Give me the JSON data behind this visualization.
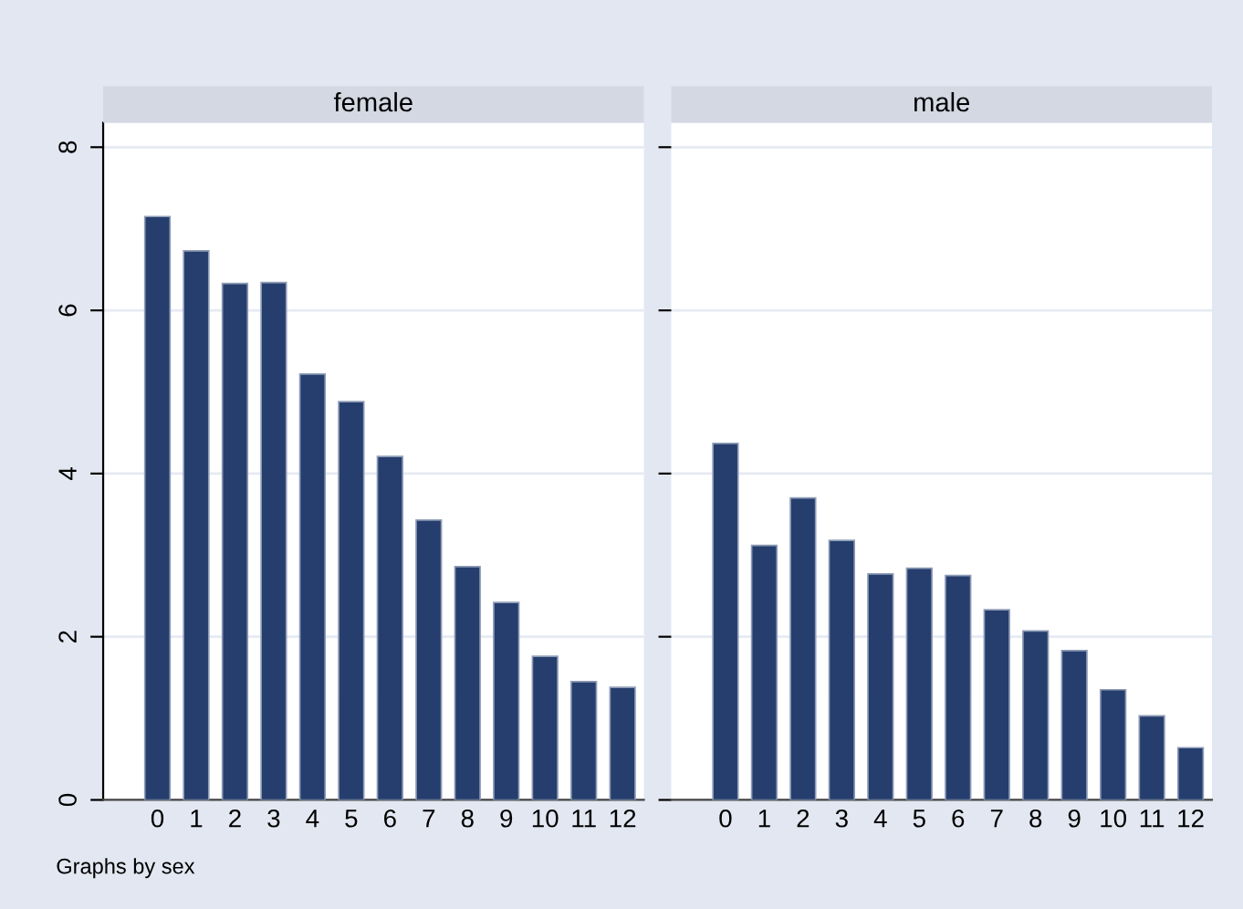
{
  "chart_data": [
    {
      "type": "bar",
      "title": "female",
      "categories": [
        "0",
        "1",
        "2",
        "3",
        "4",
        "5",
        "6",
        "7",
        "8",
        "9",
        "10",
        "11",
        "12"
      ],
      "series": [
        {
          "color": "#263e6e",
          "values": [
            7.15,
            6.73,
            6.33,
            6.34,
            5.22,
            4.88,
            4.21,
            3.43,
            2.86,
            2.42,
            1.76,
            1.45,
            1.38
          ]
        }
      ],
      "ylim": [
        0,
        8.3
      ],
      "yticks": [
        0,
        2,
        4,
        6,
        8
      ],
      "grid": "y",
      "legend": false
    },
    {
      "type": "bar",
      "title": "male",
      "categories": [
        "0",
        "1",
        "2",
        "3",
        "4",
        "5",
        "6",
        "7",
        "8",
        "9",
        "10",
        "11",
        "12"
      ],
      "series": [
        {
          "color": "#263e6e",
          "values": [
            4.37,
            3.12,
            3.7,
            3.18,
            2.77,
            2.84,
            2.75,
            2.33,
            2.07,
            1.83,
            1.35,
            1.03,
            0.64
          ]
        }
      ],
      "ylim": [
        0,
        8.3
      ],
      "yticks": [
        0,
        2,
        4,
        6,
        8
      ],
      "grid": "y",
      "legend": false,
      "tick_labels": "x",
      "annotations": [
        "Graphs by sex"
      ]
    }
  ]
}
